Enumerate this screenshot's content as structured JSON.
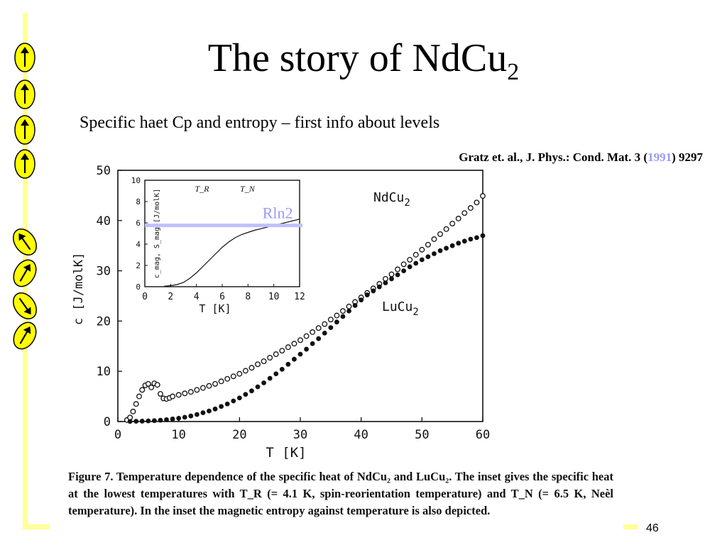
{
  "slide": {
    "title_main": "The story of NdCu",
    "title_sub": "2",
    "subtitle": "Specific haet Cp  and entropy – first info about levels",
    "reference_pre": "Gratz et. al., J. Phys.: Cond. Mat. 3 (",
    "reference_year": "1991",
    "reference_post": ") 9297",
    "caption": "Figure 7. Temperature dependence of the specific heat of NdCu₂ and LuCu₂. The inset gives the specific heat at the lowest temperatures with T_R (= 4.1 K, spin-reorientation temperature) and T_N (= 6.5 K, Neèl temperature). In the inset the magnetic entropy against temperature is also depicted.",
    "slide_number": "46",
    "colors": {
      "accent": "#ffff99",
      "rln2_line": "#c0c0ff",
      "rln2_text": "#9999ff",
      "year": "#9999ff",
      "icon_fill": "#ffff00"
    }
  },
  "spin_icons": [
    {
      "name": "up-arrow-icon",
      "angle": 0
    },
    {
      "name": "up-arrow-icon",
      "angle": 0
    },
    {
      "name": "up-arrow-icon",
      "angle": 0
    },
    {
      "name": "up-arrow-icon",
      "angle": 0
    },
    {
      "name": "tilted-arrow-icon",
      "angle": -35
    },
    {
      "name": "tilted-arrow-icon",
      "angle": 30
    },
    {
      "name": "tilted-arrow-icon",
      "angle": 145
    },
    {
      "name": "tilted-arrow-icon",
      "angle": 30
    }
  ],
  "chart_data": [
    {
      "type": "scatter",
      "xlabel": "T [K]",
      "ylabel": "c [J/molK]",
      "xlim": [
        0,
        60
      ],
      "ylim": [
        0,
        50
      ],
      "xticks": [
        "0",
        "10",
        "20",
        "30",
        "40",
        "50",
        "60"
      ],
      "yticks": [
        "0",
        "10",
        "20",
        "30",
        "40",
        "50"
      ],
      "series": [
        {
          "name": "NdCu2",
          "marker": "open-circle",
          "x": [
            1.5,
            2,
            2.5,
            3,
            3.5,
            4,
            4.5,
            5,
            5.5,
            6,
            6.5,
            7,
            7.5,
            8,
            8.5,
            9,
            10,
            11,
            12,
            13,
            14,
            15,
            16,
            17,
            18,
            19,
            20,
            21,
            22,
            23,
            24,
            25,
            26,
            27,
            28,
            29,
            30,
            31,
            32,
            33,
            34,
            35,
            36,
            37,
            38,
            39,
            40,
            41,
            42,
            43,
            44,
            45,
            46,
            47,
            48,
            49,
            50,
            51,
            52,
            53,
            54,
            55,
            56,
            57,
            58,
            59,
            60
          ],
          "y": [
            0.3,
            0.8,
            2,
            3.5,
            5,
            6.3,
            7.2,
            7.5,
            6.8,
            7.6,
            7.3,
            5.5,
            4.6,
            4.5,
            4.7,
            5.0,
            5.3,
            5.6,
            5.9,
            6.3,
            6.7,
            7.1,
            7.5,
            8.0,
            8.5,
            9.0,
            9.5,
            10.1,
            10.7,
            11.4,
            12.0,
            12.7,
            13.4,
            14.1,
            14.8,
            15.5,
            16.2,
            17.0,
            17.8,
            18.6,
            19.4,
            20.3,
            21.1,
            22.0,
            22.9,
            23.8,
            24.7,
            25.6,
            26.5,
            27.4,
            28.4,
            29.3,
            30.3,
            31.3,
            32.2,
            33.2,
            34.2,
            35.2,
            36.3,
            37.3,
            38.3,
            39.4,
            40.4,
            41.5,
            42.5,
            43.6,
            44.9
          ]
        },
        {
          "name": "LuCu2",
          "marker": "filled-circle",
          "x": [
            2,
            3,
            4,
            5,
            6,
            7,
            8,
            9,
            10,
            11,
            12,
            13,
            14,
            15,
            16,
            17,
            18,
            19,
            20,
            21,
            22,
            23,
            24,
            25,
            26,
            27,
            28,
            29,
            30,
            31,
            32,
            33,
            34,
            35,
            36,
            37,
            38,
            39,
            40,
            41,
            42,
            43,
            44,
            45,
            46,
            47,
            48,
            49,
            50,
            51,
            52,
            53,
            54,
            55,
            56,
            57,
            58,
            59,
            60
          ],
          "y": [
            0.02,
            0.05,
            0.08,
            0.12,
            0.18,
            0.26,
            0.36,
            0.5,
            0.65,
            0.85,
            1.1,
            1.4,
            1.75,
            2.1,
            2.5,
            3.0,
            3.5,
            4.1,
            4.7,
            5.4,
            6.1,
            6.9,
            7.7,
            8.6,
            9.5,
            10.4,
            11.4,
            12.4,
            13.4,
            14.4,
            15.5,
            16.5,
            17.6,
            18.7,
            19.8,
            20.9,
            22.0,
            23.1,
            24.2,
            25.2,
            26.0,
            26.8,
            27.6,
            28.4,
            29.2,
            30.0,
            30.8,
            31.5,
            32.2,
            32.8,
            33.4,
            34.0,
            34.5,
            35.0,
            35.5,
            35.9,
            36.3,
            36.6,
            37.0
          ]
        }
      ],
      "annotations": [
        "NdCu2",
        "LuCu2"
      ]
    },
    {
      "type": "line",
      "role": "inset",
      "xlabel": "T [K]",
      "ylabel": "c_mag, S_mag [J/molK]",
      "xlim": [
        0,
        12
      ],
      "ylim": [
        0,
        10
      ],
      "xticks": [
        "0",
        "2",
        "4",
        "6",
        "8",
        "10",
        "12"
      ],
      "yticks": [
        "0",
        "2",
        "4",
        "6",
        "8",
        "10"
      ],
      "markers": [
        "T_R",
        "T_N"
      ],
      "hline": {
        "label": "Rln2",
        "y": 5.76
      },
      "series": [
        {
          "name": "S_mag",
          "x": [
            1.5,
            2,
            2.5,
            3,
            3.5,
            4,
            4.5,
            5,
            5.5,
            6,
            6.5,
            7,
            7.5,
            8,
            8.5,
            9,
            9.5,
            10,
            10.5,
            11,
            11.5,
            12
          ],
          "y": [
            0.05,
            0.1,
            0.2,
            0.4,
            0.8,
            1.3,
            1.9,
            2.5,
            3.1,
            3.7,
            4.2,
            4.6,
            4.9,
            5.1,
            5.3,
            5.45,
            5.6,
            5.75,
            5.9,
            6.05,
            6.2,
            6.35
          ]
        }
      ]
    }
  ]
}
